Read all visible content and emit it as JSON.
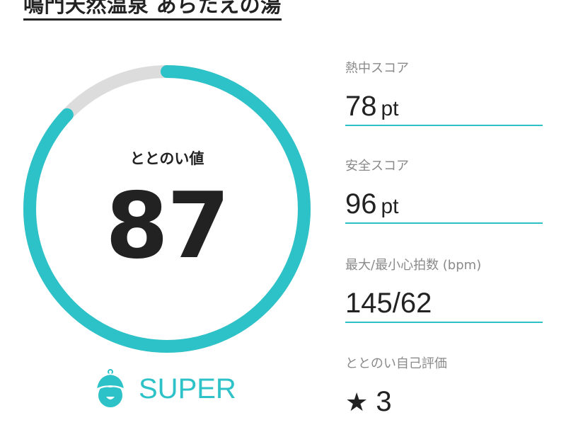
{
  "facility_title": "鳴門天然温泉 あらたえの湯",
  "gauge": {
    "label": "ととのい値",
    "value": "87",
    "progress_percent": 87,
    "fill_color": "#2cc2c8",
    "track_color": "#dcdcdc"
  },
  "rank": {
    "icon": "sauna-hat-face-icon",
    "label": "SUPER"
  },
  "stats": [
    {
      "label": "熱中スコア",
      "value": "78",
      "unit": "pt"
    },
    {
      "label": "安全スコア",
      "value": "96",
      "unit": "pt"
    },
    {
      "label": "最大/最小心拍数 (bpm)",
      "value": "145/62"
    },
    {
      "label": "ととのい自己評価",
      "icon": "star-icon",
      "value": "3"
    }
  ]
}
